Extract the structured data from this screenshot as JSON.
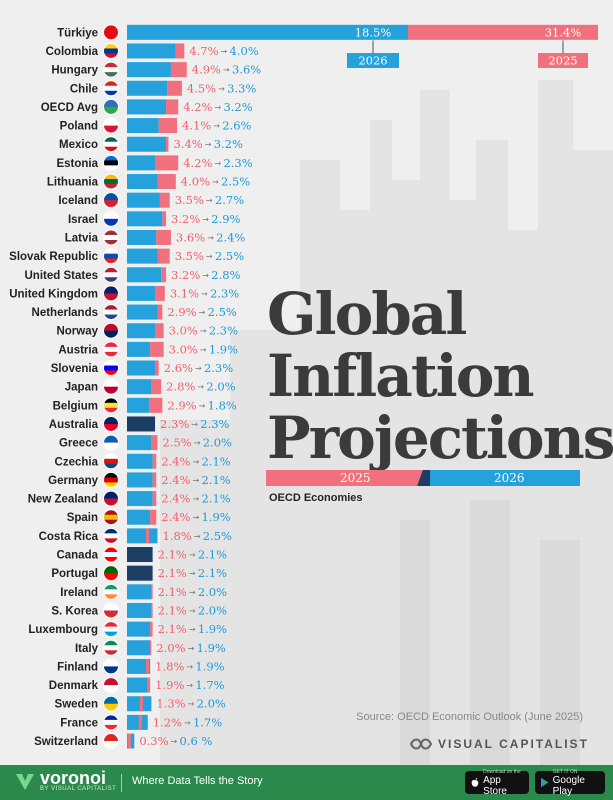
{
  "title_lines": [
    "Global",
    "Inflation",
    "Projections"
  ],
  "subtitle": "OECD Economies",
  "legend": {
    "y2025": "2025",
    "y2026": "2026"
  },
  "source": "Source: OECD Economic Outlook (June 2025)",
  "publisher": "VISUAL CAPITALIST",
  "footer": {
    "brand": "voronoi",
    "brand_sub": "BY VISUAL CAPITALIST",
    "tagline": "Where Data Tells the Story",
    "appstore_small": "Download on the",
    "appstore_big": "App Store",
    "googleplay_small": "GET IT ON",
    "googleplay_big": "Google Play"
  },
  "colors": {
    "y2025": "#f0707d",
    "y2026": "#25a1dc",
    "overlap": "#1b3e62",
    "title": "#3b3b3b"
  },
  "chart_data": {
    "type": "bar",
    "orientation": "horizontal",
    "categories": [
      "Türkiye",
      "Colombia",
      "Hungary",
      "Chile",
      "OECD Avg",
      "Poland",
      "Mexico",
      "Estonia",
      "Lithuania",
      "Iceland",
      "Israel",
      "Latvia",
      "Slovak Republic",
      "United States",
      "United Kingdom",
      "Netherlands",
      "Norway",
      "Austria",
      "Slovenia",
      "Japan",
      "Belgium",
      "Australia",
      "Greece",
      "Czechia",
      "Germany",
      "New Zealand",
      "Spain",
      "Costa Rica",
      "Canada",
      "Portugal",
      "Ireland",
      "S. Korea",
      "Luxembourg",
      "Italy",
      "Finland",
      "Denmark",
      "Sweden",
      "France",
      "Switzerland"
    ],
    "series": [
      {
        "name": "2025",
        "values": [
          31.4,
          4.7,
          4.9,
          4.5,
          4.2,
          4.1,
          3.4,
          4.2,
          4.0,
          3.5,
          3.2,
          3.6,
          3.5,
          3.2,
          3.1,
          2.9,
          3.0,
          3.0,
          2.6,
          2.8,
          2.9,
          2.3,
          2.5,
          2.4,
          2.4,
          2.4,
          2.4,
          1.8,
          2.1,
          2.1,
          2.1,
          2.1,
          2.1,
          2.0,
          1.8,
          1.9,
          1.3,
          1.2,
          0.3
        ]
      },
      {
        "name": "2026",
        "values": [
          18.5,
          4.0,
          3.6,
          3.3,
          3.2,
          2.6,
          3.2,
          2.3,
          2.5,
          2.7,
          2.9,
          2.4,
          2.5,
          2.8,
          2.3,
          2.5,
          2.3,
          1.9,
          2.3,
          2.0,
          1.8,
          2.3,
          2.0,
          2.1,
          2.1,
          2.1,
          1.9,
          2.5,
          2.1,
          2.1,
          2.0,
          2.0,
          1.9,
          1.9,
          1.9,
          1.7,
          2.0,
          1.7,
          0.6
        ]
      }
    ],
    "labels_2025": [
      "31.4%",
      "4.7%",
      "4.9%",
      "4.5%",
      "4.2%",
      "4.1%",
      "3.4%",
      "4.2%",
      "4.0%",
      "3.5%",
      "3.2%",
      "3.6%",
      "3.5%",
      "3.2%",
      "3.1%",
      "2.9%",
      "3.0%",
      "3.0%",
      "2.6%",
      "2.8%",
      "2.9%",
      "2.3%",
      "2.5%",
      "2.4%",
      "2.4%",
      "2.4%",
      "2.4%",
      "1.8%",
      "2.1%",
      "2.1%",
      "2.1%",
      "2.1%",
      "2.1%",
      "2.0%",
      "1.8%",
      "1.9%",
      "1.3%",
      "1.2%",
      "0.3%"
    ],
    "labels_2026": [
      "18.5%",
      "4.0%",
      "3.6%",
      "3.3%",
      "3.2%",
      "2.6%",
      "3.2%",
      "2.3%",
      "2.5%",
      "2.7%",
      "2.9%",
      "2.4%",
      "2.5%",
      "2.8%",
      "2.3%",
      "2.5%",
      "2.3%",
      "1.9%",
      "2.3%",
      "2.0%",
      "1.8%",
      "2.3%",
      "2.0%",
      "2.1%",
      "2.1%",
      "2.1%",
      "1.9%",
      "2.5%",
      "2.1%",
      "2.1%",
      "2.0%",
      "2.0%",
      "1.9%",
      "1.9%",
      "1.9%",
      "1.7%",
      "2.0%",
      "1.7%",
      "0.6 %"
    ],
    "flag_colors": [
      [
        "#e30a17",
        "#e30a17"
      ],
      [
        "#fcd116",
        "#003893",
        "#ce1126"
      ],
      [
        "#ce2939",
        "#ffffff",
        "#477050"
      ],
      [
        "#d52b1e",
        "#ffffff",
        "#0039a6"
      ],
      [
        "#2f6fb0",
        "#2fa84f"
      ],
      [
        "#ffffff",
        "#dc143c"
      ],
      [
        "#006847",
        "#ffffff",
        "#ce1126"
      ],
      [
        "#0072ce",
        "#000000",
        "#ffffff"
      ],
      [
        "#fdb913",
        "#006a44",
        "#c1272d"
      ],
      [
        "#02529c",
        "#dc1e35"
      ],
      [
        "#ffffff",
        "#0038b8"
      ],
      [
        "#9e3039",
        "#ffffff",
        "#9e3039"
      ],
      [
        "#ffffff",
        "#0b4ea2",
        "#ee1c25"
      ],
      [
        "#b22234",
        "#ffffff",
        "#3c3b6e"
      ],
      [
        "#012169",
        "#c8102e"
      ],
      [
        "#ae1c28",
        "#ffffff",
        "#21468b"
      ],
      [
        "#ba0c2f",
        "#00205b"
      ],
      [
        "#ed2939",
        "#ffffff",
        "#ed2939"
      ],
      [
        "#ffffff",
        "#0000ff",
        "#ff0000"
      ],
      [
        "#ffffff",
        "#bc002d"
      ],
      [
        "#000000",
        "#fae042",
        "#ed2939"
      ],
      [
        "#012169",
        "#e4002b"
      ],
      [
        "#0d5eaf",
        "#ffffff"
      ],
      [
        "#ffffff",
        "#d7141a",
        "#11457e"
      ],
      [
        "#000000",
        "#dd0000",
        "#ffce00"
      ],
      [
        "#012169",
        "#c8102e"
      ],
      [
        "#aa151b",
        "#f1bf00",
        "#aa151b"
      ],
      [
        "#002b7f",
        "#ffffff",
        "#ce1126"
      ],
      [
        "#ff0000",
        "#ffffff",
        "#ff0000"
      ],
      [
        "#006600",
        "#ff0000"
      ],
      [
        "#169b62",
        "#ffffff",
        "#ff883e"
      ],
      [
        "#ffffff",
        "#cd2e3a"
      ],
      [
        "#ed2939",
        "#ffffff",
        "#00a1de"
      ],
      [
        "#009246",
        "#ffffff",
        "#ce2b37"
      ],
      [
        "#ffffff",
        "#003580"
      ],
      [
        "#c8102e",
        "#ffffff"
      ],
      [
        "#006aa7",
        "#fecc00"
      ],
      [
        "#002395",
        "#ffffff",
        "#ed2939"
      ],
      [
        "#da291c",
        "#ffffff"
      ]
    ],
    "scale_note": "Türkiye 2025 bar runs the full width; bars are truncated",
    "value_max_shown": 31.4
  }
}
